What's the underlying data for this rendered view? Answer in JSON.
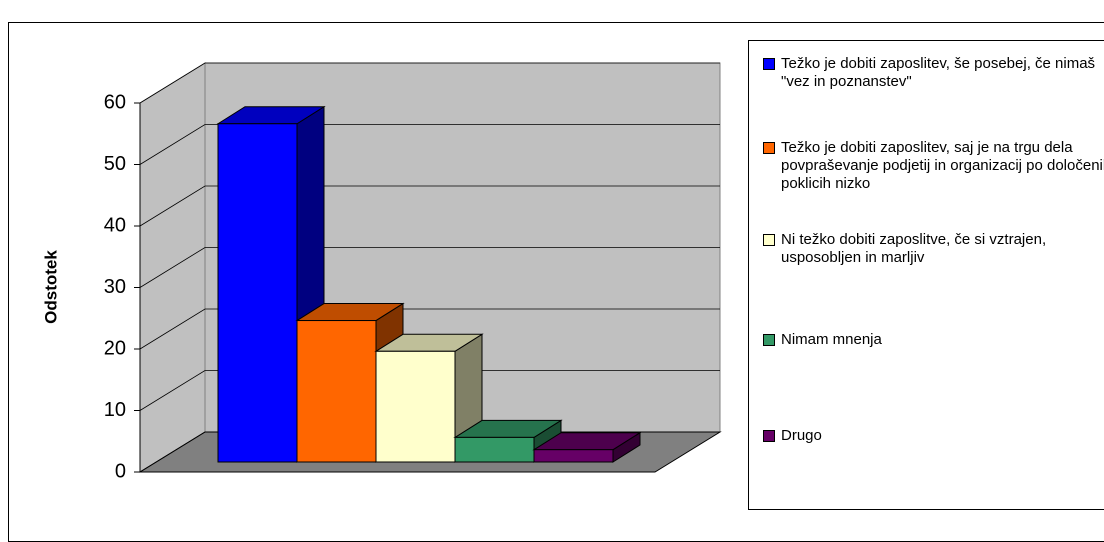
{
  "chart_data": {
    "type": "bar3d",
    "ylabel": "Odstotek",
    "ylim": [
      0,
      60
    ],
    "yticks": [
      0,
      10,
      20,
      30,
      40,
      50,
      60
    ],
    "grid": true,
    "series": [
      {
        "name": "Težko je dobiti zaposlitev, še posebej, če nimaš \"vez in poznanstev\"",
        "color": "#0000ff",
        "values": [
          55
        ]
      },
      {
        "name": "Težko je dobiti zaposlitev, saj je na trgu dela povpraševanje podjetij in organizacij po določenih poklicih nizko",
        "color": "#ff6600",
        "values": [
          23
        ]
      },
      {
        "name": "Ni težko dobiti zaposlitve, če si vztrajen, usposobljen in marljiv",
        "color": "#ffffcc",
        "values": [
          18
        ]
      },
      {
        "name": "Nimam mnenja",
        "color": "#339966",
        "values": [
          4
        ]
      },
      {
        "name": "Drugo",
        "color": "#660066",
        "values": [
          2
        ]
      }
    ]
  }
}
